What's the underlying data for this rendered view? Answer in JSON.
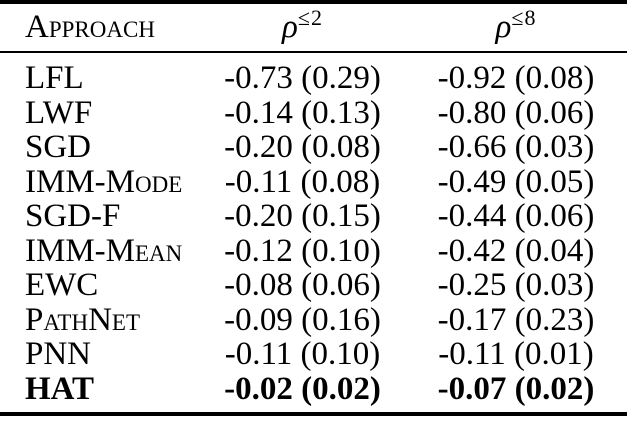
{
  "page": {
    "background": "#ffffff",
    "text_color": "#000000",
    "rule_color": "#000000"
  },
  "table": {
    "header": {
      "approach_label": "Approach",
      "columns": [
        {
          "symbol": "ρ",
          "superscript": "≤2"
        },
        {
          "symbol": "ρ",
          "superscript": "≤8"
        }
      ]
    },
    "rows": [
      {
        "approach": "LFL",
        "values": [
          "-0.73 (0.29)",
          "-0.92 (0.08)"
        ],
        "bold": false
      },
      {
        "approach": "LWF",
        "values": [
          "-0.14 (0.13)",
          "-0.80 (0.06)"
        ],
        "bold": false
      },
      {
        "approach": "SGD",
        "values": [
          "-0.20 (0.08)",
          "-0.66 (0.03)"
        ],
        "bold": false
      },
      {
        "approach": "IMM-Mode",
        "values": [
          "-0.11 (0.08)",
          "-0.49 (0.05)"
        ],
        "bold": false
      },
      {
        "approach": "SGD-F",
        "values": [
          "-0.20 (0.15)",
          "-0.44 (0.06)"
        ],
        "bold": false
      },
      {
        "approach": "IMM-Mean",
        "values": [
          "-0.12 (0.10)",
          "-0.42 (0.04)"
        ],
        "bold": false
      },
      {
        "approach": "EWC",
        "values": [
          "-0.08 (0.06)",
          "-0.25 (0.03)"
        ],
        "bold": false
      },
      {
        "approach": "PathNet",
        "values": [
          "-0.09 (0.16)",
          "-0.17 (0.23)"
        ],
        "bold": false
      },
      {
        "approach": "PNN",
        "values": [
          "-0.11 (0.10)",
          "-0.11 (0.01)"
        ],
        "bold": false
      },
      {
        "approach": "HAT",
        "values": [
          "-0.02 (0.02)",
          "-0.07 (0.02)"
        ],
        "bold": true
      }
    ]
  }
}
